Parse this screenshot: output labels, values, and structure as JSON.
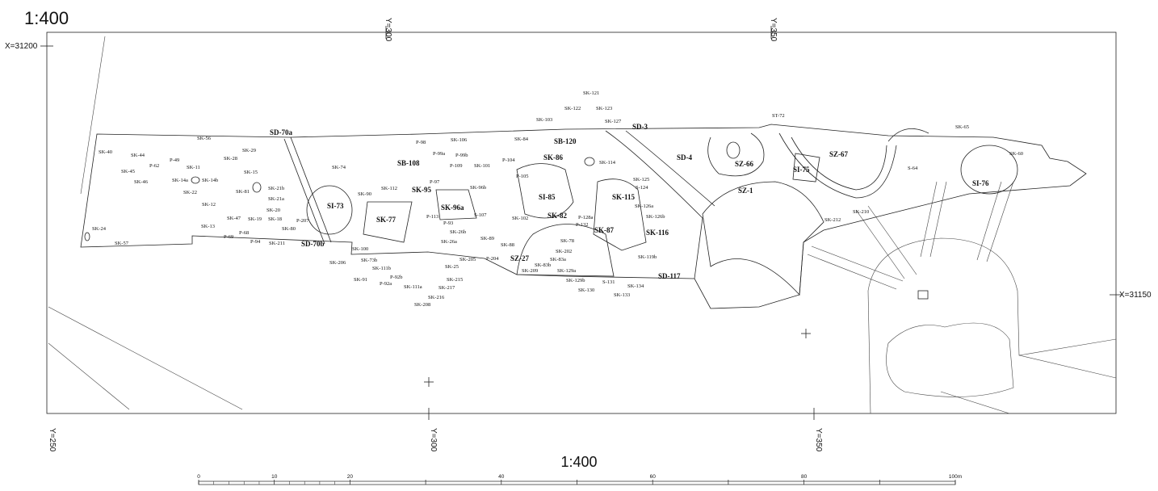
{
  "header": {
    "scale": "1:400"
  },
  "grid_labels": [
    "Y=300",
    "Y=350",
    "X=31200",
    "X=31150",
    "Y=250",
    "Y=300",
    "Y=350"
  ],
  "features": [
    "SK-40",
    "SK-44",
    "P-62",
    "SK-45",
    "SK-46",
    "P-49",
    "SK-11",
    "SK-14a",
    "SK-14b",
    "SK-22",
    "SK-12",
    "SK-56",
    "SK-29",
    "SK-28",
    "SK-15",
    "SK-81",
    "SK-21b",
    "SK-21a",
    "SK-20",
    "SK-47",
    "SK-19",
    "SK-18",
    "SK-13",
    "SK-80",
    "P-69",
    "P-68",
    "P-94",
    "SK-211",
    "P-207",
    "SD-70a",
    "SD-70b",
    "SI-73",
    "SK-74",
    "SK-90",
    "SK-112",
    "SK-77",
    "SK-95",
    "SB-108",
    "P-98",
    "P-99a",
    "P-99b",
    "SK-106",
    "P-109",
    "SK-101",
    "P-97",
    "SK-96b",
    "SK-96a",
    "P-113",
    "P-93",
    "SK-26b",
    "SK-26a",
    "SK-89",
    "P-204",
    "SK-88",
    "SK-205",
    "SK-25",
    "SK-215",
    "SK-217",
    "SK-216",
    "SK-208",
    "SK-111a",
    "P-92a",
    "P-92b",
    "SK-111b",
    "SK-73b",
    "SK-100",
    "SK-206",
    "SK-91",
    "SK-24",
    "SK-57",
    "SK-84",
    "SK-103",
    "SB-120",
    "SK-122",
    "SK-121",
    "SK-123",
    "SK-127",
    "SD-3",
    "P-104",
    "SK-86",
    "SK-114",
    "SK-125",
    "S-124",
    "P-105",
    "SI-85",
    "SK-115",
    "S-107",
    "SK-102",
    "SK-82",
    "P-128a",
    "P-132",
    "SK-126a",
    "SK-126b",
    "SK-87",
    "SK-116",
    "SK-78",
    "SK-202",
    "SZ-27",
    "SK-83a",
    "SK-83b",
    "SK-209",
    "SK-129a",
    "SK-129b",
    "SK-119b",
    "S-131",
    "SK-134",
    "SK-130",
    "SK-133",
    "SD-117",
    "SD-4",
    "SZ-66",
    "ST-72",
    "SZ-1",
    "SI-75",
    "SZ-67",
    "SK-65",
    "S-64",
    "SK-60",
    "SI-76",
    "SK-210",
    "SK-212"
  ],
  "scale_bar": {
    "title": "1:400",
    "labels": [
      "0",
      "10",
      "20",
      "40",
      "60",
      "80",
      "100m"
    ]
  }
}
